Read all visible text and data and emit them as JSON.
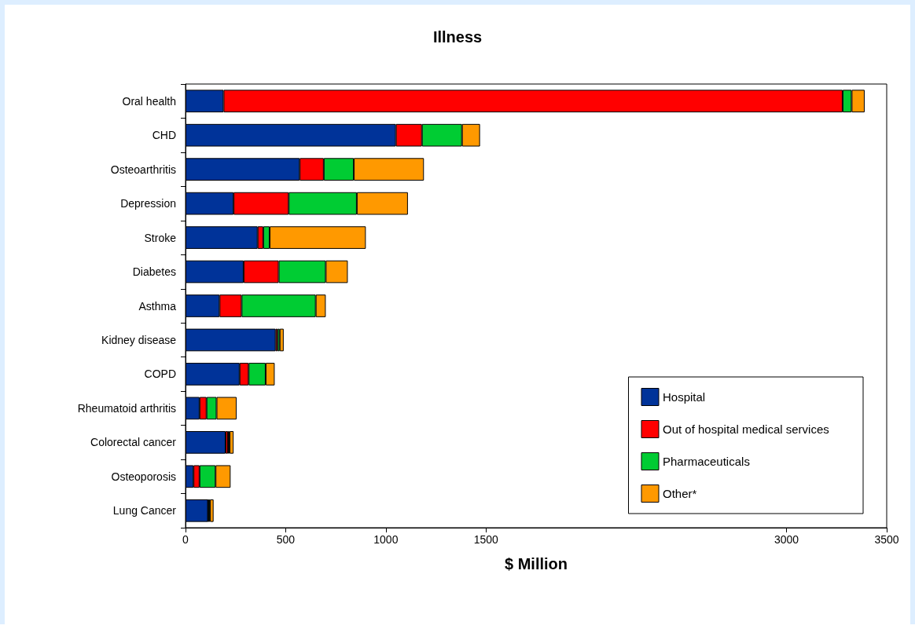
{
  "chart_data": {
    "type": "bar",
    "title": "Illness",
    "xlabel": "$ Million",
    "orientation": "horizontal",
    "stacked": true,
    "categories": [
      "Oral health",
      "CHD",
      "Osteoarthritis",
      "Depression",
      "Stroke",
      "Diabetes",
      "Asthma",
      "Kidney disease",
      "COPD",
      "Rheumatoid arthritis",
      "Colorectal cancer",
      "Osteoporosis",
      "Lung Cancer"
    ],
    "series": [
      {
        "name": "Hospital",
        "color": "#003399",
        "values": [
          190,
          1050,
          570,
          240,
          360,
          290,
          170,
          450,
          270,
          70,
          200,
          40,
          112
        ]
      },
      {
        "name": "Out of hospital medical services",
        "color": "#ff0000",
        "values": [
          3090,
          130,
          120,
          275,
          28,
          175,
          110,
          10,
          45,
          35,
          12,
          30,
          2
        ]
      },
      {
        "name": "Pharmaceuticals",
        "color": "#00cc33",
        "values": [
          45,
          200,
          150,
          340,
          32,
          235,
          370,
          10,
          85,
          50,
          8,
          80,
          8
        ]
      },
      {
        "name": "Other*",
        "color": "#ff9900",
        "values": [
          65,
          90,
          350,
          255,
          480,
          110,
          50,
          20,
          45,
          100,
          20,
          75,
          18
        ]
      }
    ],
    "xlim": [
      0,
      3500
    ],
    "xticks": [
      0,
      500,
      1000,
      1500,
      3000,
      3500
    ],
    "grid": false,
    "legend": "bottom right"
  }
}
